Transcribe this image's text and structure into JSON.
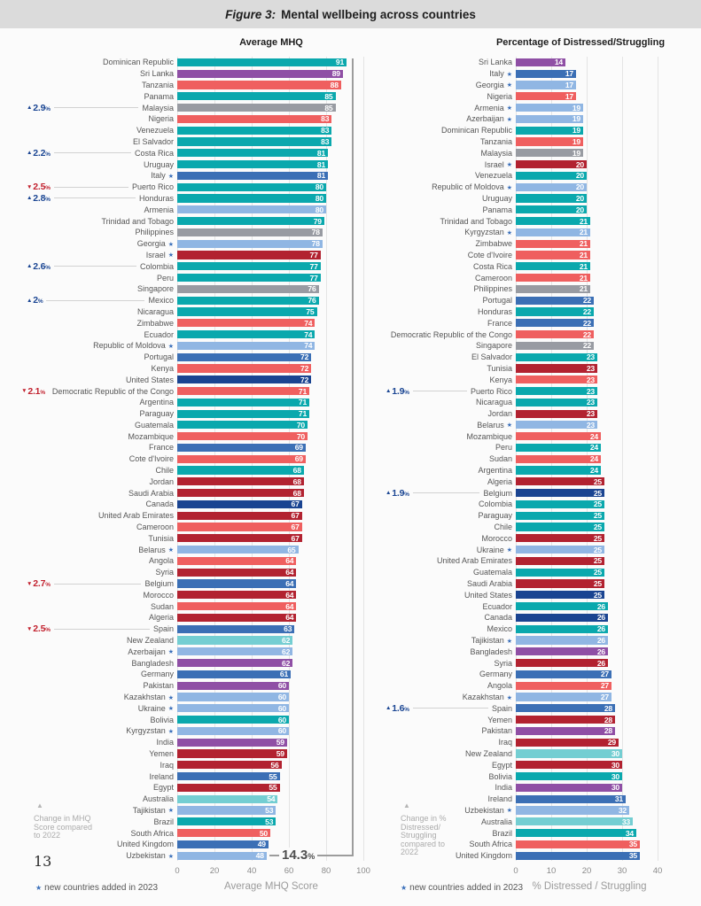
{
  "header": {
    "figure_label": "Figure 3:",
    "title": "Mental wellbeing across countries"
  },
  "page_number": "13",
  "colors": {
    "teal": "#0aa8ad",
    "light_teal": "#74ced2",
    "coral": "#ef5f5f",
    "dark_red": "#b22230",
    "blue": "#3b6fb5",
    "navy": "#1a4491",
    "light_blue": "#90b6e3",
    "purple": "#8f4fa5",
    "gray": "#989ba2",
    "annotation_up": "#1b4693",
    "annotation_down": "#c2222f",
    "star": "#3a6fba",
    "bracket": "#9c9c9c"
  },
  "chart_data": [
    {
      "type": "bar",
      "orientation": "horizontal",
      "title": "Average MHQ",
      "xlabel": "Average MHQ Score",
      "xticks": [
        0,
        20,
        40,
        60,
        80,
        100
      ],
      "xlim": [
        0,
        101
      ],
      "grid": true,
      "legend": {
        "star": "★",
        "text": "new countries added in 2023"
      },
      "note": {
        "symbol": "▲",
        "lines": [
          "Change in MHQ",
          "Score compared",
          "to 2022",
          "",
          ""
        ]
      },
      "bracket": {
        "label": "14.3",
        "suffix": "%"
      },
      "rows": [
        {
          "country": "Dominican Republic",
          "value": 91,
          "color": "teal"
        },
        {
          "country": "Sri Lanka",
          "value": 89,
          "color": "purple"
        },
        {
          "country": "Tanzania",
          "value": 88,
          "color": "coral"
        },
        {
          "country": "Panama",
          "value": 85,
          "color": "teal"
        },
        {
          "country": "Malaysia",
          "value": 85,
          "color": "gray",
          "change": {
            "dir": "up",
            "value": "2.9"
          }
        },
        {
          "country": "Nigeria",
          "value": 83,
          "color": "coral"
        },
        {
          "country": "Venezuela",
          "value": 83,
          "color": "teal"
        },
        {
          "country": "El Salvador",
          "value": 83,
          "color": "teal"
        },
        {
          "country": "Costa Rica",
          "value": 81,
          "color": "teal",
          "change": {
            "dir": "up",
            "value": "2.2"
          }
        },
        {
          "country": "Uruguay",
          "value": 81,
          "color": "teal"
        },
        {
          "country": "Italy",
          "value": 81,
          "color": "blue",
          "star": true
        },
        {
          "country": "Puerto Rico",
          "value": 80,
          "color": "teal",
          "change": {
            "dir": "down",
            "value": "2.5"
          }
        },
        {
          "country": "Honduras",
          "value": 80,
          "color": "teal",
          "change": {
            "dir": "up",
            "value": "2.8"
          }
        },
        {
          "country": "Armenia",
          "value": 80,
          "color": "light_blue"
        },
        {
          "country": "Trinidad and Tobago",
          "value": 79,
          "color": "teal"
        },
        {
          "country": "Philippines",
          "value": 78,
          "color": "gray"
        },
        {
          "country": "Georgia",
          "value": 78,
          "color": "light_blue",
          "star": true
        },
        {
          "country": "Israel",
          "value": 77,
          "color": "dark_red",
          "star": true
        },
        {
          "country": "Colombia",
          "value": 77,
          "color": "teal",
          "change": {
            "dir": "up",
            "value": "2.6"
          }
        },
        {
          "country": "Peru",
          "value": 77,
          "color": "teal"
        },
        {
          "country": "Singapore",
          "value": 76,
          "color": "gray"
        },
        {
          "country": "Mexico",
          "value": 76,
          "color": "teal",
          "change": {
            "dir": "up",
            "value": "2"
          }
        },
        {
          "country": "Nicaragua",
          "value": 75,
          "color": "teal"
        },
        {
          "country": "Zimbabwe",
          "value": 74,
          "color": "coral"
        },
        {
          "country": "Ecuador",
          "value": 74,
          "color": "teal"
        },
        {
          "country": "Republic of Moldova",
          "value": 74,
          "color": "light_blue",
          "star": true
        },
        {
          "country": "Portugal",
          "value": 72,
          "color": "blue"
        },
        {
          "country": "Kenya",
          "value": 72,
          "color": "coral"
        },
        {
          "country": "United States",
          "value": 72,
          "color": "navy"
        },
        {
          "country": "Democratic Republic of the Congo",
          "value": 71,
          "color": "coral",
          "change": {
            "dir": "down",
            "value": "2.1"
          }
        },
        {
          "country": "Argentina",
          "value": 71,
          "color": "teal"
        },
        {
          "country": "Paraguay",
          "value": 71,
          "color": "teal"
        },
        {
          "country": "Guatemala",
          "value": 70,
          "color": "teal"
        },
        {
          "country": "Mozambique",
          "value": 70,
          "color": "coral"
        },
        {
          "country": "France",
          "value": 69,
          "color": "blue"
        },
        {
          "country": "Cote d'Ivoire",
          "value": 69,
          "color": "coral"
        },
        {
          "country": "Chile",
          "value": 68,
          "color": "teal"
        },
        {
          "country": "Jordan",
          "value": 68,
          "color": "dark_red"
        },
        {
          "country": "Saudi Arabia",
          "value": 68,
          "color": "dark_red"
        },
        {
          "country": "Canada",
          "value": 67,
          "color": "navy"
        },
        {
          "country": "United Arab Emirates",
          "value": 67,
          "color": "dark_red"
        },
        {
          "country": "Cameroon",
          "value": 67,
          "color": "coral"
        },
        {
          "country": "Tunisia",
          "value": 67,
          "color": "dark_red"
        },
        {
          "country": "Belarus",
          "value": 65,
          "color": "light_blue",
          "star": true
        },
        {
          "country": "Angola",
          "value": 64,
          "color": "coral"
        },
        {
          "country": "Syria",
          "value": 64,
          "color": "dark_red"
        },
        {
          "country": "Belgium",
          "value": 64,
          "color": "blue",
          "change": {
            "dir": "down",
            "value": "2.7"
          }
        },
        {
          "country": "Morocco",
          "value": 64,
          "color": "dark_red"
        },
        {
          "country": "Sudan",
          "value": 64,
          "color": "coral"
        },
        {
          "country": "Algeria",
          "value": 64,
          "color": "dark_red"
        },
        {
          "country": "Spain",
          "value": 63,
          "color": "blue",
          "change": {
            "dir": "down",
            "value": "2.5"
          }
        },
        {
          "country": "New Zealand",
          "value": 62,
          "color": "light_teal"
        },
        {
          "country": "Azerbaijan",
          "value": 62,
          "color": "light_blue",
          "star": true
        },
        {
          "country": "Bangladesh",
          "value": 62,
          "color": "purple"
        },
        {
          "country": "Germany",
          "value": 61,
          "color": "blue"
        },
        {
          "country": "Pakistan",
          "value": 60,
          "color": "purple"
        },
        {
          "country": "Kazakhstan",
          "value": 60,
          "color": "light_blue",
          "star": true
        },
        {
          "country": "Ukraine",
          "value": 60,
          "color": "light_blue",
          "star": true
        },
        {
          "country": "Bolivia",
          "value": 60,
          "color": "teal"
        },
        {
          "country": "Kyrgyzstan",
          "value": 60,
          "color": "light_blue",
          "star": true
        },
        {
          "country": "India",
          "value": 59,
          "color": "purple"
        },
        {
          "country": "Yemen",
          "value": 59,
          "color": "dark_red"
        },
        {
          "country": "Iraq",
          "value": 56,
          "color": "dark_red"
        },
        {
          "country": "Ireland",
          "value": 55,
          "color": "blue"
        },
        {
          "country": "Egypt",
          "value": 55,
          "color": "dark_red"
        },
        {
          "country": "Australia",
          "value": 54,
          "color": "light_teal"
        },
        {
          "country": "Tajikistan",
          "value": 53,
          "color": "light_blue",
          "star": true
        },
        {
          "country": "Brazil",
          "value": 53,
          "color": "teal"
        },
        {
          "country": "South Africa",
          "value": 50,
          "color": "coral"
        },
        {
          "country": "United Kingdom",
          "value": 49,
          "color": "blue"
        },
        {
          "country": "Uzbekistan",
          "value": 48,
          "color": "light_blue",
          "star": true
        }
      ]
    },
    {
      "type": "bar",
      "orientation": "horizontal",
      "title": "Percentage of Distressed/Struggling",
      "xlabel": "% Distressed / Struggling",
      "xticks": [
        0,
        10,
        20,
        30,
        40
      ],
      "xlim": [
        0,
        45
      ],
      "grid": true,
      "legend": {
        "star": "★",
        "text": "new countries added in 2023"
      },
      "note": {
        "symbol": "▲",
        "lines": [
          "Change in %",
          "Distressed/",
          "Struggling",
          "compared to",
          "2022"
        ]
      },
      "rows": [
        {
          "country": "Sri Lanka",
          "value": 14,
          "color": "purple"
        },
        {
          "country": "Italy",
          "value": 17,
          "color": "blue",
          "star": true
        },
        {
          "country": "Georgia",
          "value": 17,
          "color": "light_blue",
          "star": true
        },
        {
          "country": "Nigeria",
          "value": 17,
          "color": "coral"
        },
        {
          "country": "Armenia",
          "value": 19,
          "color": "light_blue",
          "star": true
        },
        {
          "country": "Azerbaijan",
          "value": 19,
          "color": "light_blue",
          "star": true
        },
        {
          "country": "Dominican Republic",
          "value": 19,
          "color": "teal"
        },
        {
          "country": "Tanzania",
          "value": 19,
          "color": "coral"
        },
        {
          "country": "Malaysia",
          "value": 19,
          "color": "gray"
        },
        {
          "country": "Israel",
          "value": 20,
          "color": "dark_red",
          "star": true
        },
        {
          "country": "Venezuela",
          "value": 20,
          "color": "teal"
        },
        {
          "country": "Republic of Moldova",
          "value": 20,
          "color": "light_blue",
          "star": true
        },
        {
          "country": "Uruguay",
          "value": 20,
          "color": "teal"
        },
        {
          "country": "Panama",
          "value": 20,
          "color": "teal"
        },
        {
          "country": "Trinidad and Tobago",
          "value": 21,
          "color": "teal"
        },
        {
          "country": "Kyrgyzstan",
          "value": 21,
          "color": "light_blue",
          "star": true
        },
        {
          "country": "Zimbabwe",
          "value": 21,
          "color": "coral"
        },
        {
          "country": "Cote d'Ivoire",
          "value": 21,
          "color": "coral"
        },
        {
          "country": "Costa Rica",
          "value": 21,
          "color": "teal"
        },
        {
          "country": "Cameroon",
          "value": 21,
          "color": "coral"
        },
        {
          "country": "Philippines",
          "value": 21,
          "color": "gray"
        },
        {
          "country": "Portugal",
          "value": 22,
          "color": "blue"
        },
        {
          "country": "Honduras",
          "value": 22,
          "color": "teal"
        },
        {
          "country": "France",
          "value": 22,
          "color": "blue"
        },
        {
          "country": "Democratic Republic of the Congo",
          "value": 22,
          "color": "coral"
        },
        {
          "country": "Singapore",
          "value": 22,
          "color": "gray"
        },
        {
          "country": "El Salvador",
          "value": 23,
          "color": "teal"
        },
        {
          "country": "Tunisia",
          "value": 23,
          "color": "dark_red"
        },
        {
          "country": "Kenya",
          "value": 23,
          "color": "coral"
        },
        {
          "country": "Puerto Rico",
          "value": 23,
          "color": "teal",
          "change": {
            "dir": "up",
            "value": "1.9"
          }
        },
        {
          "country": "Nicaragua",
          "value": 23,
          "color": "teal"
        },
        {
          "country": "Jordan",
          "value": 23,
          "color": "dark_red"
        },
        {
          "country": "Belarus",
          "value": 23,
          "color": "light_blue",
          "star": true
        },
        {
          "country": "Mozambique",
          "value": 24,
          "color": "coral"
        },
        {
          "country": "Peru",
          "value": 24,
          "color": "teal"
        },
        {
          "country": "Sudan",
          "value": 24,
          "color": "coral"
        },
        {
          "country": "Argentina",
          "value": 24,
          "color": "teal"
        },
        {
          "country": "Algeria",
          "value": 25,
          "color": "dark_red"
        },
        {
          "country": "Belgium",
          "value": 25,
          "color": "navy",
          "change": {
            "dir": "up",
            "value": "1.9"
          }
        },
        {
          "country": "Colombia",
          "value": 25,
          "color": "teal"
        },
        {
          "country": "Paraguay",
          "value": 25,
          "color": "teal"
        },
        {
          "country": "Chile",
          "value": 25,
          "color": "teal"
        },
        {
          "country": "Morocco",
          "value": 25,
          "color": "dark_red"
        },
        {
          "country": "Ukraine",
          "value": 25,
          "color": "light_blue",
          "star": true
        },
        {
          "country": "United Arab Emirates",
          "value": 25,
          "color": "dark_red"
        },
        {
          "country": "Guatemala",
          "value": 25,
          "color": "teal"
        },
        {
          "country": "Saudi Arabia",
          "value": 25,
          "color": "dark_red"
        },
        {
          "country": "United States",
          "value": 25,
          "color": "navy"
        },
        {
          "country": "Ecuador",
          "value": 26,
          "color": "teal"
        },
        {
          "country": "Canada",
          "value": 26,
          "color": "navy"
        },
        {
          "country": "Mexico",
          "value": 26,
          "color": "teal"
        },
        {
          "country": "Tajikistan",
          "value": 26,
          "color": "light_blue",
          "star": true
        },
        {
          "country": "Bangladesh",
          "value": 26,
          "color": "purple"
        },
        {
          "country": "Syria",
          "value": 26,
          "color": "dark_red"
        },
        {
          "country": "Germany",
          "value": 27,
          "color": "blue"
        },
        {
          "country": "Angola",
          "value": 27,
          "color": "coral"
        },
        {
          "country": "Kazakhstan",
          "value": 27,
          "color": "light_blue",
          "star": true
        },
        {
          "country": "Spain",
          "value": 28,
          "color": "blue",
          "change": {
            "dir": "up",
            "value": "1.6"
          }
        },
        {
          "country": "Yemen",
          "value": 28,
          "color": "dark_red"
        },
        {
          "country": "Pakistan",
          "value": 28,
          "color": "purple"
        },
        {
          "country": "Iraq",
          "value": 29,
          "color": "dark_red"
        },
        {
          "country": "New Zealand",
          "value": 30,
          "color": "light_teal"
        },
        {
          "country": "Egypt",
          "value": 30,
          "color": "dark_red"
        },
        {
          "country": "Bolivia",
          "value": 30,
          "color": "teal"
        },
        {
          "country": "India",
          "value": 30,
          "color": "purple"
        },
        {
          "country": "Ireland",
          "value": 31,
          "color": "blue"
        },
        {
          "country": "Uzbekistan",
          "value": 32,
          "color": "light_blue",
          "star": true
        },
        {
          "country": "Australia",
          "value": 33,
          "color": "light_teal"
        },
        {
          "country": "Brazil",
          "value": 34,
          "color": "teal"
        },
        {
          "country": "South Africa",
          "value": 35,
          "color": "coral"
        },
        {
          "country": "United Kingdom",
          "value": 35,
          "color": "blue"
        }
      ]
    }
  ]
}
